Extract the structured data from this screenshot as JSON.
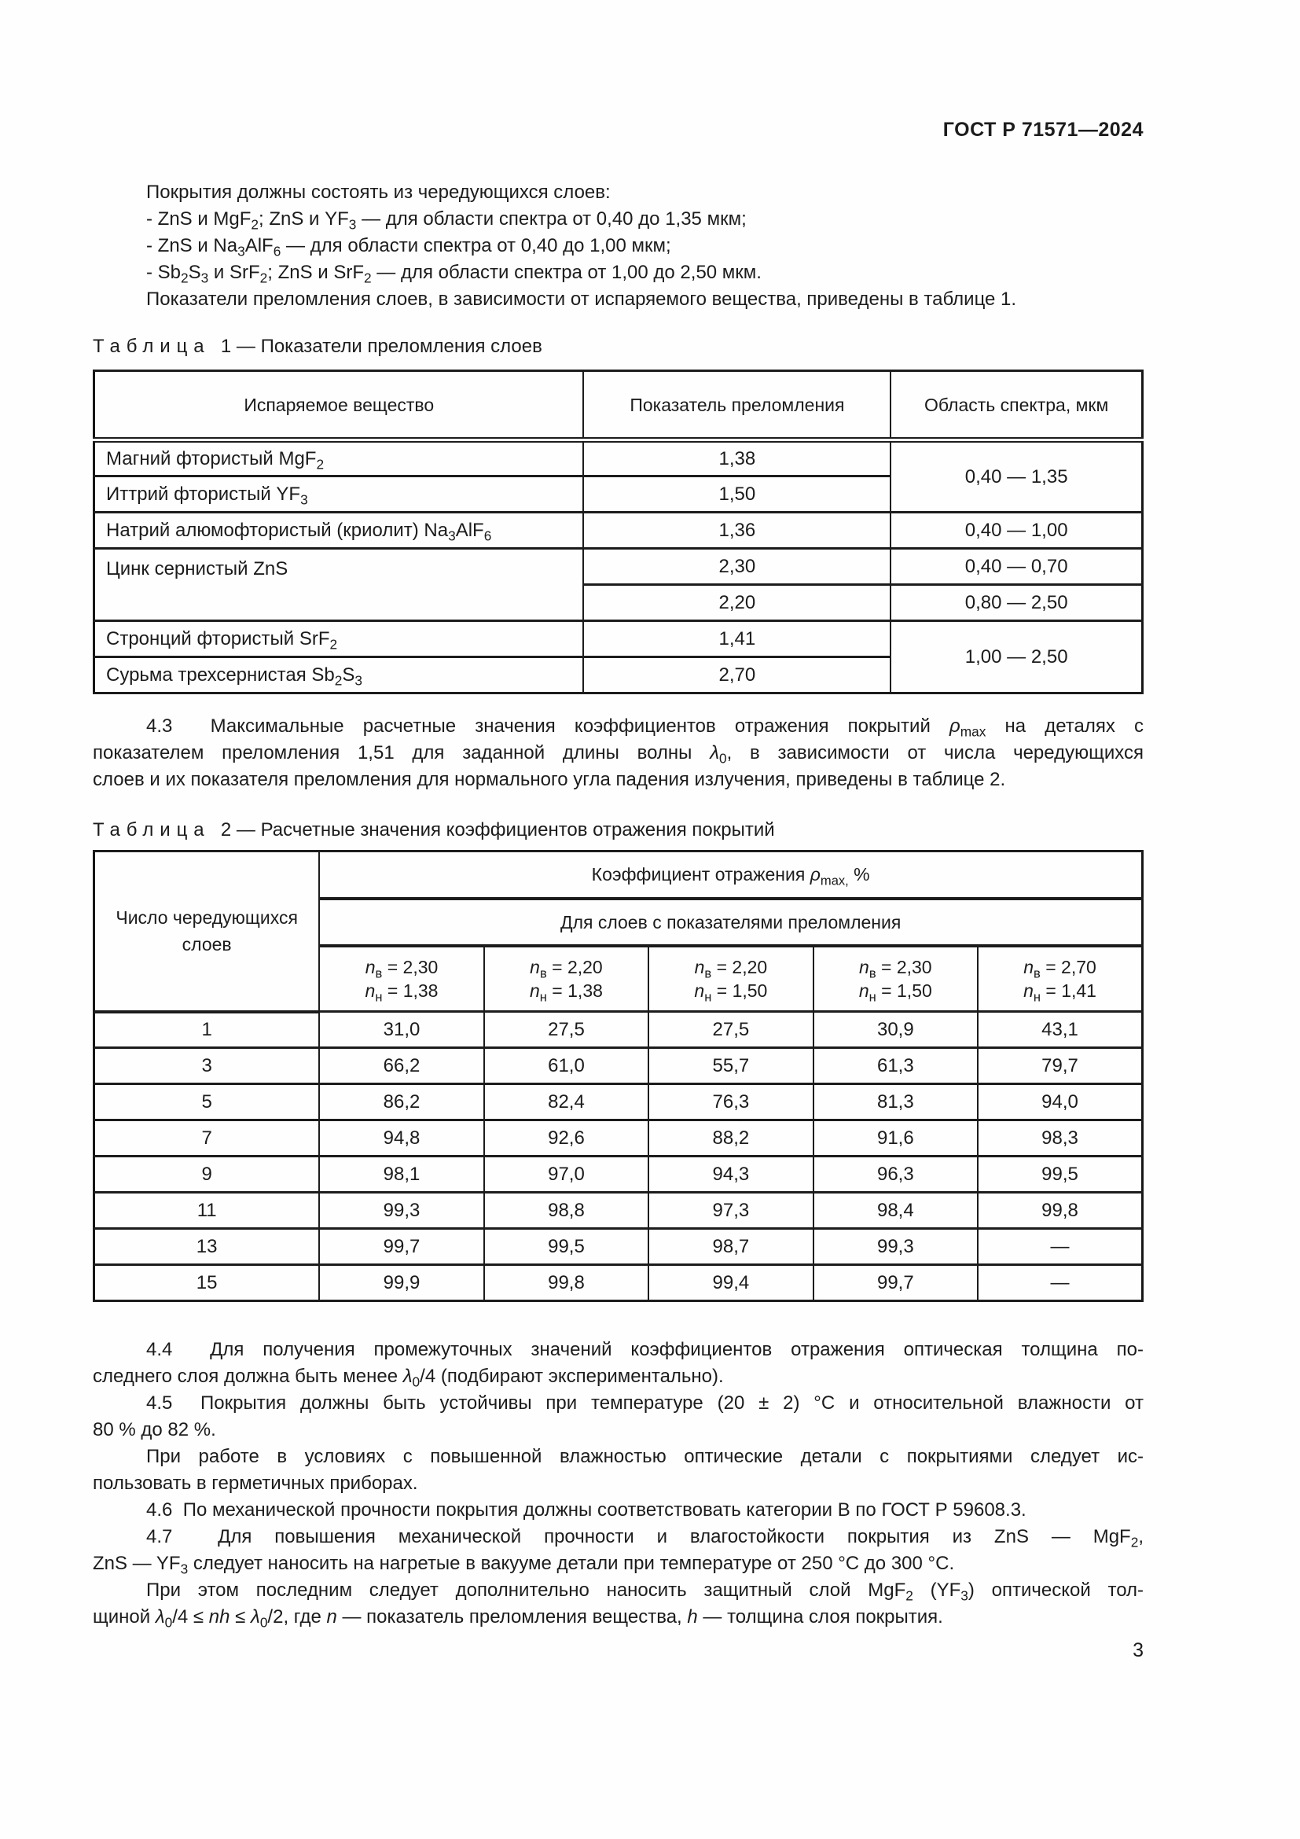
{
  "doc": {
    "header": "ГОСТ Р 71571—2024",
    "page_number": "3"
  },
  "intro": {
    "lead": "Покрытия должны состоять из чередующихся слоев:",
    "items": [
      "- ZnS и MgF<sub>2</sub>; ZnS и YF<sub>3</sub> — для области спектра от 0,40 до 1,35 мкм;",
      "- ZnS и Na<sub>3</sub>AlF<sub>6</sub> — для области спектра от 0,40 до 1,00 мкм;",
      "- Sb<sub>2</sub>S<sub>3</sub> и SrF<sub>2</sub>; ZnS и SrF<sub>2</sub> — для области спектра от 1,00 до 2,50 мкм."
    ],
    "note": "Показатели преломления слоев, в зависимости от испаряемого вещества, приведены в таблице 1."
  },
  "table1": {
    "caption_html": "<span class=\"lsp\">Таблица</span>&nbsp; 1 — Показатели преломления слоев",
    "headers": [
      "Испаряемое вещество",
      "Показатель преломления",
      "Область спектра, мкм"
    ],
    "r1c1": "Магний фтористый MgF<sub>2</sub>",
    "r1c2": "1,38",
    "r12c3": "0,40 — 1,35",
    "r2c1": "Иттрий фтористый YF<sub>3</sub>",
    "r2c2": "1,50",
    "r3c1": "Натрий алюмофтористый (криолит) Na<sub>3</sub>AlF<sub>6</sub>",
    "r3c2": "1,36",
    "r3c3": "0,40 — 1,00",
    "r45c1": "Цинк сернистый ZnS",
    "r4c2": "2,30",
    "r4c3": "0,40 — 0,70",
    "r5c2": "2,20",
    "r5c3": "0,80 — 2,50",
    "r6c1": "Стронций фтористый SrF<sub>2</sub>",
    "r6c2": "1,41",
    "r67c3": "1,00 — 2,50",
    "r7c1": "Сурьма трехсернистая Sb<sub>2</sub>S<sub>3</sub>",
    "r7c2": "2,70"
  },
  "s43": {
    "l1": "4.3&nbsp; Максимальные расчетные значения коэффициентов отражения покрытий <i>ρ</i><sub>max</sub> на деталях с",
    "l2": "показателем преломления 1,51 для заданной длины волны <i>λ</i><sub>0</sub>, в зависимости от числа чередующихся",
    "l3": "слоев и их показателя преломления для нормального угла падения излучения, приведены в таблице 2."
  },
  "table2": {
    "caption_html": "<span class=\"lsp\">Таблица</span>&nbsp; 2 — Расчетные значения коэффициентов отражения покрытий",
    "col1_header": "Число чередующихся слоев",
    "span_header": "Коэффициент отражения <i>ρ</i><sub>max,</sub> %",
    "sub_header": "Для слоев с показателями преломления",
    "n_cells": [
      "<i>n</i><sub>в</sub> = 2,30<br><i>n</i><sub>н</sub> = 1,38",
      "<i>n</i><sub>в</sub> = 2,20<br><i>n</i><sub>н</sub> = 1,38",
      "<i>n</i><sub>в</sub> = 2,20<br><i>n</i><sub>н</sub> = 1,50",
      "<i>n</i><sub>в</sub> = 2,30<br><i>n</i><sub>н</sub> = 1,50",
      "<i>n</i><sub>в</sub> = 2,70<br><i>n</i><sub>н</sub> = 1,41"
    ],
    "rows": [
      [
        "1",
        "31,0",
        "27,5",
        "27,5",
        "30,9",
        "43,1"
      ],
      [
        "3",
        "66,2",
        "61,0",
        "55,7",
        "61,3",
        "79,7"
      ],
      [
        "5",
        "86,2",
        "82,4",
        "76,3",
        "81,3",
        "94,0"
      ],
      [
        "7",
        "94,8",
        "92,6",
        "88,2",
        "91,6",
        "98,3"
      ],
      [
        "9",
        "98,1",
        "97,0",
        "94,3",
        "96,3",
        "99,5"
      ],
      [
        "11",
        "99,3",
        "98,8",
        "97,3",
        "98,4",
        "99,8"
      ],
      [
        "13",
        "99,7",
        "99,5",
        "98,7",
        "99,3",
        "—"
      ],
      [
        "15",
        "99,9",
        "99,8",
        "99,4",
        "99,7",
        "—"
      ]
    ]
  },
  "s44": {
    "l1": "4.4&nbsp; Для получения промежуточных значений коэффициентов отражения оптическая толщина по-",
    "l2": "следнего слоя должна быть менее <i>λ</i><sub>0</sub>/4 (подбирают экспериментально)."
  },
  "s45": {
    "l1": "4.5&nbsp; Покрытия должны быть устойчивы при температуре (20 ± 2) °С и относительной влажности от",
    "l2": "80 % до 82 %."
  },
  "s45b": {
    "l1": "При работе в условиях с повышенной влажностью оптические детали с покрытиями следует ис-",
    "l2": "пользовать в герметичных приборах."
  },
  "s46": {
    "l1": "4.6&nbsp; По механической прочности покрытия должны соответствовать категории В по ГОСТ Р 59608.3."
  },
  "s47": {
    "l1": "4.7&nbsp; Для повышения механической прочности и влагостойкости покрытия из ZnS — MgF<sub>2</sub>,",
    "l2": "ZnS — YF<sub>3</sub> следует наносить на нагретые в вакууме детали при температуре от 250 °С до 300 °С."
  },
  "s47b": {
    "l1": "При этом последним следует дополнительно наносить защитный слой MgF<sub>2</sub> (YF<sub>3</sub>) оптической тол-",
    "l2": "щиной <i>λ</i><sub>0</sub>/4 ≤ <i>nh</i> ≤ <i>λ</i><sub>0</sub>/2, где <i>n</i> — показатель преломления вещества, <i>h</i> — толщина слоя покрытия."
  }
}
